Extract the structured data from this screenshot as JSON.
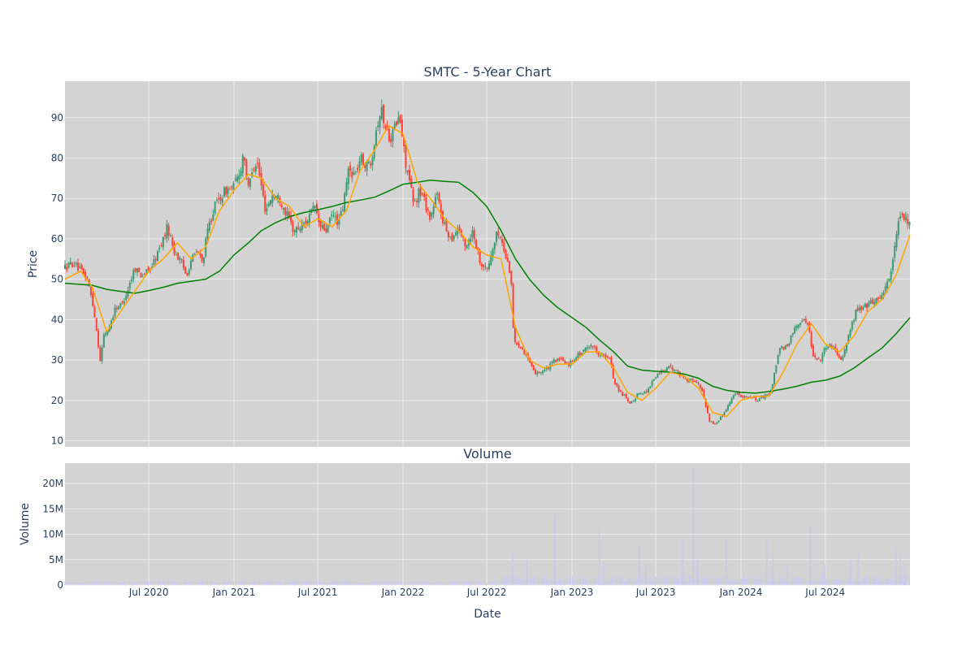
{
  "chart_data": [
    {
      "type": "candlestick",
      "title": "SMTC - 5-Year Chart",
      "ylabel": "Price",
      "ylim": [
        8.5,
        99
      ],
      "yticks": [
        10,
        20,
        30,
        40,
        50,
        60,
        70,
        80,
        90
      ],
      "x_range": [
        "2020-01-02",
        "2024-12-31"
      ],
      "x_ticks": [
        {
          "date": "2020-07-01",
          "label": "Jul 2020"
        },
        {
          "date": "2021-01-01",
          "label": "Jan 2021"
        },
        {
          "date": "2021-07-01",
          "label": "Jul 2021"
        },
        {
          "date": "2022-01-01",
          "label": "Jan 2022"
        },
        {
          "date": "2022-07-01",
          "label": "Jul 2022"
        },
        {
          "date": "2023-01-01",
          "label": "Jan 2023"
        },
        {
          "date": "2023-07-01",
          "label": "Jul 2023"
        },
        {
          "date": "2024-01-01",
          "label": "Jan 2024"
        },
        {
          "date": "2024-07-01",
          "label": "Jul 2024"
        }
      ],
      "grid": true,
      "colors": {
        "up": "#3d9970",
        "down": "#ff4136",
        "ma_short": "#ffa500",
        "ma_long": "#008000",
        "plot_bg": "#d3d3d3",
        "grid": "#eeeeee"
      },
      "close_path": [
        [
          "2020-01-02",
          53
        ],
        [
          "2020-01-20",
          54
        ],
        [
          "2020-02-05",
          52
        ],
        [
          "2020-02-20",
          50
        ],
        [
          "2020-03-05",
          42
        ],
        [
          "2020-03-18",
          30
        ],
        [
          "2020-03-26",
          36
        ],
        [
          "2020-04-06",
          38
        ],
        [
          "2020-04-20",
          43
        ],
        [
          "2020-05-05",
          44
        ],
        [
          "2020-05-18",
          48
        ],
        [
          "2020-06-01",
          53
        ],
        [
          "2020-06-15",
          51
        ],
        [
          "2020-07-01",
          52
        ],
        [
          "2020-07-15",
          55
        ],
        [
          "2020-08-01",
          60
        ],
        [
          "2020-08-10",
          63
        ],
        [
          "2020-08-25",
          57
        ],
        [
          "2020-09-10",
          54
        ],
        [
          "2020-09-20",
          51
        ],
        [
          "2020-10-01",
          55
        ],
        [
          "2020-10-15",
          57
        ],
        [
          "2020-10-25",
          54
        ],
        [
          "2020-11-05",
          62
        ],
        [
          "2020-11-20",
          68
        ],
        [
          "2020-12-01",
          70
        ],
        [
          "2020-12-15",
          72
        ],
        [
          "2021-01-01",
          73
        ],
        [
          "2021-01-15",
          77
        ],
        [
          "2021-01-22",
          82
        ],
        [
          "2021-02-01",
          72
        ],
        [
          "2021-02-10",
          78
        ],
        [
          "2021-02-20",
          79
        ],
        [
          "2021-03-01",
          73
        ],
        [
          "2021-03-10",
          67
        ],
        [
          "2021-03-25",
          71
        ],
        [
          "2021-04-10",
          70
        ],
        [
          "2021-04-25",
          66
        ],
        [
          "2021-05-10",
          62
        ],
        [
          "2021-05-25",
          63
        ],
        [
          "2021-06-10",
          65
        ],
        [
          "2021-06-25",
          68
        ],
        [
          "2021-07-05",
          63
        ],
        [
          "2021-07-20",
          62
        ],
        [
          "2021-08-01",
          66
        ],
        [
          "2021-08-15",
          64
        ],
        [
          "2021-08-25",
          68
        ],
        [
          "2021-09-05",
          77
        ],
        [
          "2021-09-20",
          76
        ],
        [
          "2021-10-01",
          80
        ],
        [
          "2021-10-15",
          78
        ],
        [
          "2021-10-25",
          80
        ],
        [
          "2021-11-05",
          88
        ],
        [
          "2021-11-15",
          92
        ],
        [
          "2021-11-25",
          87
        ],
        [
          "2021-12-05",
          85
        ],
        [
          "2021-12-15",
          88
        ],
        [
          "2021-12-25",
          90
        ],
        [
          "2022-01-05",
          80
        ],
        [
          "2022-01-15",
          74
        ],
        [
          "2022-01-25",
          68
        ],
        [
          "2022-02-05",
          72
        ],
        [
          "2022-02-15",
          70
        ],
        [
          "2022-03-01",
          65
        ],
        [
          "2022-03-15",
          71
        ],
        [
          "2022-04-01",
          63
        ],
        [
          "2022-04-15",
          60
        ],
        [
          "2022-05-01",
          63
        ],
        [
          "2022-05-15",
          58
        ],
        [
          "2022-06-01",
          62
        ],
        [
          "2022-06-15",
          55
        ],
        [
          "2022-07-01",
          52
        ],
        [
          "2022-07-15",
          58
        ],
        [
          "2022-07-25",
          62
        ],
        [
          "2022-08-05",
          58
        ],
        [
          "2022-08-20",
          52
        ],
        [
          "2022-08-25",
          47
        ],
        [
          "2022-08-28",
          34
        ],
        [
          "2022-09-10",
          34
        ],
        [
          "2022-09-25",
          31
        ],
        [
          "2022-10-10",
          27
        ],
        [
          "2022-10-25",
          27
        ],
        [
          "2022-11-10",
          28
        ],
        [
          "2022-11-25",
          30
        ],
        [
          "2022-12-10",
          30
        ],
        [
          "2022-12-25",
          29
        ],
        [
          "2023-01-10",
          31
        ],
        [
          "2023-01-25",
          32
        ],
        [
          "2023-02-10",
          34
        ],
        [
          "2023-02-25",
          32
        ],
        [
          "2023-03-10",
          31
        ],
        [
          "2023-03-25",
          30
        ],
        [
          "2023-04-01",
          25
        ],
        [
          "2023-04-15",
          22
        ],
        [
          "2023-04-25",
          21
        ],
        [
          "2023-05-05",
          19
        ],
        [
          "2023-05-15",
          20
        ],
        [
          "2023-05-25",
          22
        ],
        [
          "2023-06-10",
          22
        ],
        [
          "2023-06-25",
          25
        ],
        [
          "2023-07-10",
          27
        ],
        [
          "2023-07-25",
          28
        ],
        [
          "2023-08-10",
          28
        ],
        [
          "2023-08-25",
          26
        ],
        [
          "2023-09-10",
          25
        ],
        [
          "2023-09-25",
          25
        ],
        [
          "2023-10-10",
          22
        ],
        [
          "2023-10-25",
          15
        ],
        [
          "2023-11-05",
          14
        ],
        [
          "2023-11-20",
          16
        ],
        [
          "2023-12-05",
          19
        ],
        [
          "2023-12-20",
          22
        ],
        [
          "2024-01-05",
          21
        ],
        [
          "2024-01-20",
          21
        ],
        [
          "2024-02-05",
          20
        ],
        [
          "2024-02-20",
          21
        ],
        [
          "2024-03-05",
          22
        ],
        [
          "2024-03-15",
          28
        ],
        [
          "2024-03-25",
          33
        ],
        [
          "2024-04-10",
          33
        ],
        [
          "2024-04-25",
          38
        ],
        [
          "2024-05-10",
          40
        ],
        [
          "2024-05-25",
          39
        ],
        [
          "2024-06-05",
          31
        ],
        [
          "2024-06-20",
          30
        ],
        [
          "2024-07-05",
          34
        ],
        [
          "2024-07-20",
          33
        ],
        [
          "2024-08-05",
          30
        ],
        [
          "2024-08-20",
          36
        ],
        [
          "2024-09-05",
          42
        ],
        [
          "2024-09-20",
          43
        ],
        [
          "2024-10-05",
          44
        ],
        [
          "2024-10-20",
          45
        ],
        [
          "2024-11-05",
          47
        ],
        [
          "2024-11-20",
          52
        ],
        [
          "2024-12-05",
          63
        ],
        [
          "2024-12-15",
          66
        ],
        [
          "2024-12-31",
          63
        ]
      ],
      "ma_short": [
        [
          "2020-01-02",
          50
        ],
        [
          "2020-02-05",
          52
        ],
        [
          "2020-03-01",
          48
        ],
        [
          "2020-04-01",
          37
        ],
        [
          "2020-05-01",
          42
        ],
        [
          "2020-06-01",
          47
        ],
        [
          "2020-07-01",
          52
        ],
        [
          "2020-08-01",
          55
        ],
        [
          "2020-09-01",
          59
        ],
        [
          "2020-10-01",
          55
        ],
        [
          "2020-11-01",
          58
        ],
        [
          "2020-12-01",
          67
        ],
        [
          "2021-01-01",
          72
        ],
        [
          "2021-02-01",
          76
        ],
        [
          "2021-03-01",
          75
        ],
        [
          "2021-04-01",
          70
        ],
        [
          "2021-05-01",
          68
        ],
        [
          "2021-06-01",
          63
        ],
        [
          "2021-07-01",
          65
        ],
        [
          "2021-08-01",
          63
        ],
        [
          "2021-09-01",
          67
        ],
        [
          "2021-10-01",
          77
        ],
        [
          "2021-11-01",
          82
        ],
        [
          "2021-12-01",
          88
        ],
        [
          "2022-01-01",
          86
        ],
        [
          "2022-02-01",
          74
        ],
        [
          "2022-03-01",
          70
        ],
        [
          "2022-04-01",
          65
        ],
        [
          "2022-05-01",
          62
        ],
        [
          "2022-06-01",
          58
        ],
        [
          "2022-07-01",
          56
        ],
        [
          "2022-08-01",
          55
        ],
        [
          "2022-09-01",
          38
        ],
        [
          "2022-10-01",
          30
        ],
        [
          "2022-11-01",
          28
        ],
        [
          "2022-12-01",
          29
        ],
        [
          "2023-01-01",
          29
        ],
        [
          "2023-02-01",
          32
        ],
        [
          "2023-03-01",
          32
        ],
        [
          "2023-04-01",
          28
        ],
        [
          "2023-05-01",
          22
        ],
        [
          "2023-06-01",
          20
        ],
        [
          "2023-07-01",
          23
        ],
        [
          "2023-08-01",
          27
        ],
        [
          "2023-09-01",
          26
        ],
        [
          "2023-10-01",
          23
        ],
        [
          "2023-11-01",
          17
        ],
        [
          "2023-12-01",
          16
        ],
        [
          "2024-01-01",
          20
        ],
        [
          "2024-02-01",
          21
        ],
        [
          "2024-03-01",
          21
        ],
        [
          "2024-04-01",
          27
        ],
        [
          "2024-05-01",
          34
        ],
        [
          "2024-06-01",
          39
        ],
        [
          "2024-07-01",
          34
        ],
        [
          "2024-08-01",
          32
        ],
        [
          "2024-09-01",
          36
        ],
        [
          "2024-10-01",
          42
        ],
        [
          "2024-11-01",
          45
        ],
        [
          "2024-12-01",
          51
        ],
        [
          "2024-12-31",
          61
        ]
      ],
      "ma_long": [
        [
          "2020-01-02",
          49
        ],
        [
          "2020-03-01",
          48.5
        ],
        [
          "2020-04-01",
          47.5
        ],
        [
          "2020-05-01",
          47
        ],
        [
          "2020-06-01",
          46.5
        ],
        [
          "2020-07-01",
          47.2
        ],
        [
          "2020-08-01",
          48
        ],
        [
          "2020-09-01",
          49
        ],
        [
          "2020-10-01",
          49.5
        ],
        [
          "2020-11-01",
          50
        ],
        [
          "2020-12-01",
          52
        ],
        [
          "2021-01-01",
          56
        ],
        [
          "2021-02-01",
          59
        ],
        [
          "2021-03-01",
          62
        ],
        [
          "2021-04-01",
          64
        ],
        [
          "2021-05-01",
          65.5
        ],
        [
          "2021-06-01",
          66.5
        ],
        [
          "2021-07-01",
          67.2
        ],
        [
          "2021-08-01",
          68
        ],
        [
          "2021-09-01",
          69
        ],
        [
          "2021-10-01",
          69.6
        ],
        [
          "2021-11-01",
          70.3
        ],
        [
          "2021-12-01",
          71.8
        ],
        [
          "2022-01-01",
          73.5
        ],
        [
          "2022-02-01",
          74
        ],
        [
          "2022-03-01",
          74.5
        ],
        [
          "2022-04-01",
          74.2
        ],
        [
          "2022-05-01",
          74
        ],
        [
          "2022-06-01",
          71.5
        ],
        [
          "2022-07-01",
          68
        ],
        [
          "2022-08-01",
          62
        ],
        [
          "2022-09-01",
          55
        ],
        [
          "2022-10-01",
          50
        ],
        [
          "2022-11-01",
          46
        ],
        [
          "2022-12-01",
          43
        ],
        [
          "2023-01-01",
          40.5
        ],
        [
          "2023-02-01",
          38
        ],
        [
          "2023-03-01",
          35
        ],
        [
          "2023-04-01",
          32
        ],
        [
          "2023-05-01",
          28.5
        ],
        [
          "2023-06-01",
          27.5
        ],
        [
          "2023-07-01",
          27.2
        ],
        [
          "2023-08-01",
          27
        ],
        [
          "2023-09-01",
          26.5
        ],
        [
          "2023-10-01",
          25.5
        ],
        [
          "2023-11-01",
          23.5
        ],
        [
          "2023-12-01",
          22.5
        ],
        [
          "2024-01-01",
          22
        ],
        [
          "2024-02-01",
          21.8
        ],
        [
          "2024-03-01",
          22.2
        ],
        [
          "2024-04-01",
          22.8
        ],
        [
          "2024-05-01",
          23.5
        ],
        [
          "2024-06-01",
          24.5
        ],
        [
          "2024-07-01",
          25
        ],
        [
          "2024-08-01",
          26
        ],
        [
          "2024-09-01",
          28
        ],
        [
          "2024-10-01",
          30.5
        ],
        [
          "2024-11-01",
          33
        ],
        [
          "2024-12-01",
          36.5
        ],
        [
          "2024-12-31",
          40.5
        ]
      ]
    },
    {
      "type": "bar",
      "title": "Volume",
      "xlabel": "Date",
      "ylabel": "Volume",
      "ylim": [
        0,
        24000000
      ],
      "yticks": [
        {
          "value": 0,
          "label": "0"
        },
        {
          "value": 5000000,
          "label": "5M"
        },
        {
          "value": 10000000,
          "label": "10M"
        },
        {
          "value": 15000000,
          "label": "15M"
        },
        {
          "value": 20000000,
          "label": "20M"
        }
      ],
      "bar_color": "#c9c9ee",
      "baseline_volume": 600000,
      "baseline_volume_from_2022_08": 1300000,
      "spikes": [
        [
          "2022-08-26",
          6000000
        ],
        [
          "2022-09-26",
          5000000
        ],
        [
          "2022-11-25",
          14000000
        ],
        [
          "2023-03-01",
          11000000
        ],
        [
          "2023-03-10",
          4500000
        ],
        [
          "2023-05-26",
          8000000
        ],
        [
          "2023-06-10",
          4000000
        ],
        [
          "2023-08-28",
          9000000
        ],
        [
          "2023-09-20",
          23500000
        ],
        [
          "2023-09-29",
          5000000
        ],
        [
          "2023-11-30",
          9000000
        ],
        [
          "2024-02-26",
          9000000
        ],
        [
          "2024-03-10",
          6000000
        ],
        [
          "2024-04-10",
          3500000
        ],
        [
          "2024-05-30",
          12000000
        ],
        [
          "2024-06-30",
          4000000
        ],
        [
          "2024-08-25",
          5000000
        ],
        [
          "2024-09-10",
          6000000
        ],
        [
          "2024-12-01",
          7000000
        ],
        [
          "2024-12-10",
          6000000
        ],
        [
          "2024-12-20",
          3500000
        ]
      ]
    }
  ]
}
